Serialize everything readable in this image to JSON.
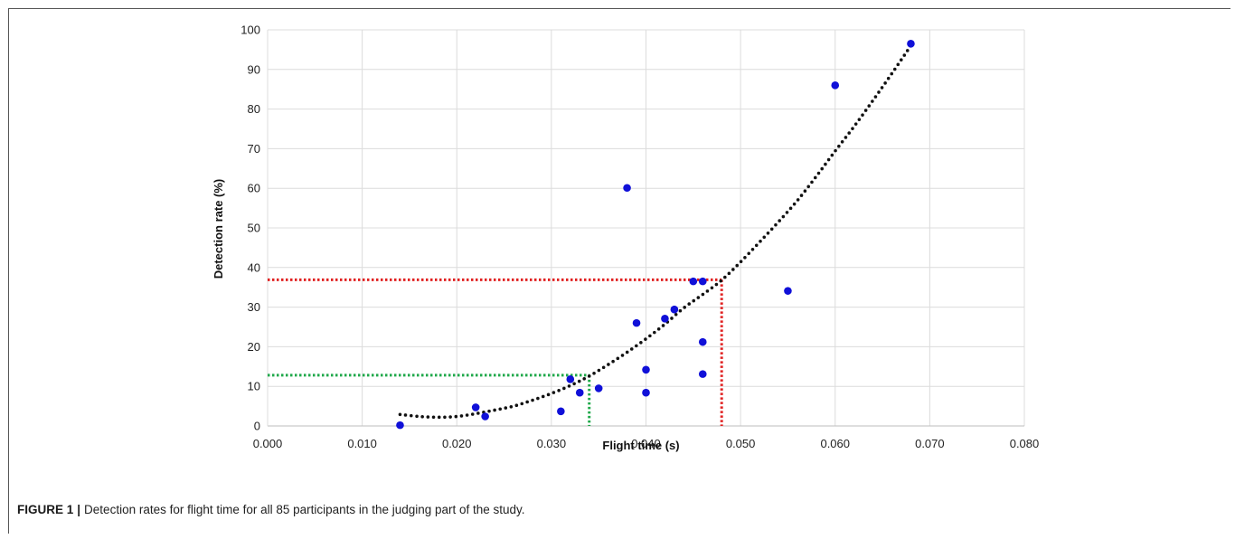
{
  "caption": {
    "label": "FIGURE 1",
    "separator": "|",
    "text": "Detection rates for flight time for all 85 participants in the judging part of the study."
  },
  "chart_data": {
    "type": "scatter",
    "title": "",
    "xlabel": "Flight time (s)",
    "ylabel": "Detection rate (%)",
    "xlim": [
      0.0,
      0.08
    ],
    "ylim": [
      0,
      100
    ],
    "x_ticks": [
      "0.000",
      "0.010",
      "0.020",
      "0.030",
      "0.040",
      "0.050",
      "0.060",
      "0.070",
      "0.080"
    ],
    "y_ticks": [
      "0",
      "10",
      "20",
      "30",
      "40",
      "50",
      "60",
      "70",
      "80",
      "90",
      "100"
    ],
    "x_tick_values": [
      0.0,
      0.01,
      0.02,
      0.03,
      0.04,
      0.05,
      0.06,
      0.07,
      0.08
    ],
    "y_tick_values": [
      0,
      10,
      20,
      30,
      40,
      50,
      60,
      70,
      80,
      90,
      100
    ],
    "grid": true,
    "series": [
      {
        "color": "#1010d8",
        "x": [
          0.014,
          0.022,
          0.023,
          0.031,
          0.032,
          0.033,
          0.035,
          0.038,
          0.039,
          0.04,
          0.04,
          0.042,
          0.043,
          0.045,
          0.046,
          0.046,
          0.046,
          0.055,
          0.06,
          0.068
        ],
        "y": [
          0.2,
          4.7,
          2.4,
          3.7,
          11.8,
          8.4,
          9.5,
          60.1,
          26.0,
          14.2,
          8.4,
          27.1,
          29.4,
          36.5,
          36.5,
          21.2,
          13.1,
          34.1,
          86.0,
          96.5
        ]
      }
    ],
    "trendline": {
      "style": "dotted",
      "color": "#111111",
      "x": [
        0.014,
        0.016,
        0.018,
        0.02,
        0.022,
        0.024,
        0.026,
        0.028,
        0.03,
        0.032,
        0.034,
        0.036,
        0.038,
        0.04,
        0.042,
        0.044,
        0.046,
        0.048,
        0.05,
        0.052,
        0.054,
        0.056,
        0.058,
        0.06,
        0.062,
        0.064,
        0.066,
        0.068
      ],
      "y": [
        2.9,
        2.4,
        2.2,
        2.4,
        3.1,
        4.0,
        5.0,
        6.5,
        8.2,
        10.2,
        12.6,
        15.5,
        18.6,
        22.0,
        25.7,
        29.8,
        33.2,
        36.8,
        41.4,
        46.4,
        51.5,
        56.9,
        63.0,
        69.4,
        75.6,
        82.2,
        89.0,
        96.0
      ]
    },
    "reference_lines": [
      {
        "color": "#e02020",
        "x": 0.048,
        "y": 36.9
      },
      {
        "color": "#1fa84a",
        "x": 0.034,
        "y": 12.8
      }
    ]
  }
}
